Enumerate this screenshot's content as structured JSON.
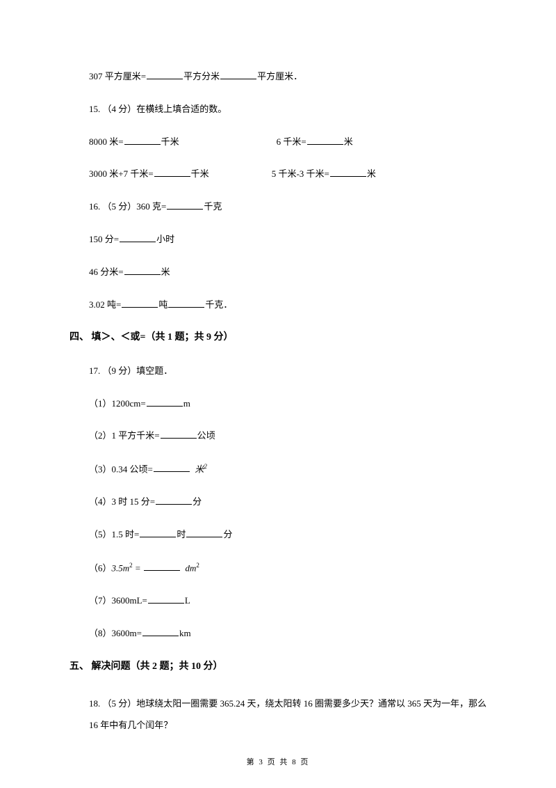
{
  "q14_line": "307 平方厘米=",
  "q14_unit1": "平方分米",
  "q14_unit2": "平方厘米．",
  "q15_head": "15. （4 分）在横线上填合适的数。",
  "q15_a1": "8000 米=",
  "q15_a1_unit": "千米",
  "q15_a2": "6 千米=",
  "q15_a2_unit": "米",
  "q15_b1": "3000 米+7 千米=",
  "q15_b1_unit": "千米",
  "q15_b2": "5 千米-3 千米=",
  "q15_b2_unit": "米",
  "q16_head": "16. （5 分）360 克=",
  "q16_head_unit": "千克",
  "q16_b": "150 分=",
  "q16_b_unit": "小时",
  "q16_c": "46 分米=",
  "q16_c_unit": "米",
  "q16_d": "3.02 吨=",
  "q16_d_unit1": "吨",
  "q16_d_unit2": "千克．",
  "section4": "四、 填＞、＜或=（共 1 题；共 9 分）",
  "q17_head": "17. （9 分）填空题．",
  "q17_1_a": "（1）1200cm=",
  "q17_1_b": "m",
  "q17_2_a": "（2）1 平方千米=",
  "q17_2_b": "公顷",
  "q17_3_a": "（3）0.34 公顷=",
  "q17_3_b": "米",
  "q17_4_a": "（4）3 时 15 分=",
  "q17_4_b": "分",
  "q17_5_a": "（5）1.5 时=",
  "q17_5_b": "时",
  "q17_5_c": "分",
  "q17_6_a": "（6）",
  "q17_6_b": "3.5m",
  "q17_6_c": " = ",
  "q17_6_d": "dm",
  "q17_7_a": "（7）3600mL=",
  "q17_7_b": "L",
  "q17_8_a": "（8）3600m=",
  "q17_8_b": "km",
  "section5": "五、 解决问题（共 2 题；共 10 分）",
  "q18": "18. （5 分）地球绕太阳一圈需要 365.24 天，绕太阳转 16 圈需要多少天？通常以 365 天为一年，那么 16 年中有几个闰年？",
  "footer": "第 3 页 共 8 页"
}
